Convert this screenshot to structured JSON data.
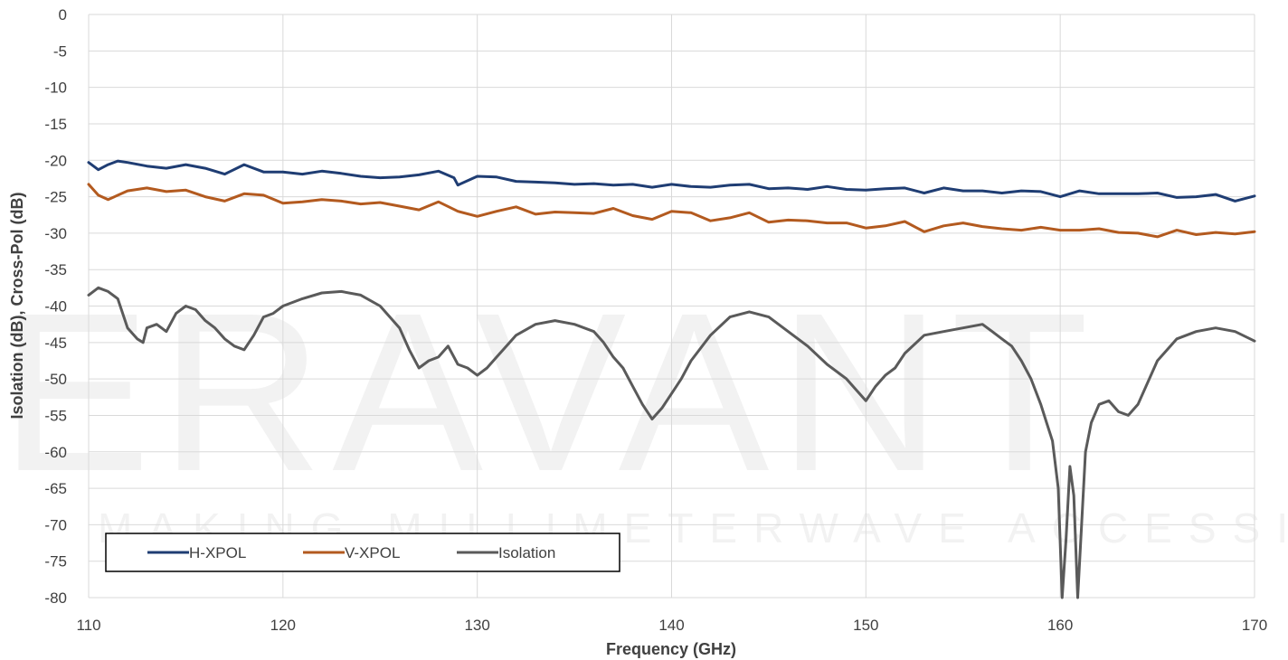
{
  "watermark": {
    "logo_text": "ERAVANT",
    "tagline": "MAKING MILLIMETERWAVE ACCESSIBLE"
  },
  "chart_data": {
    "type": "line",
    "title": "",
    "xlabel": "Frequency (GHz)",
    "ylabel": "Isolation (dB), Cross-Pol (dB)",
    "xlim": [
      110,
      170
    ],
    "ylim": [
      -80,
      0
    ],
    "x_ticks": [
      110,
      120,
      130,
      140,
      150,
      160,
      170
    ],
    "y_ticks": [
      0,
      -5,
      -10,
      -15,
      -20,
      -25,
      -30,
      -35,
      -40,
      -45,
      -50,
      -55,
      -60,
      -65,
      -70,
      -75,
      -80
    ],
    "grid": true,
    "legend_position": "bottom-left",
    "series": [
      {
        "name": "H-XPOL",
        "color": "#1f3d73",
        "x": [
          110,
          110.5,
          111,
          111.5,
          112,
          113,
          114,
          115,
          116,
          117,
          118,
          119,
          120,
          121,
          122,
          123,
          124,
          125,
          126,
          127,
          128,
          128.8,
          129,
          130,
          131,
          132,
          133,
          134,
          135,
          136,
          137,
          138,
          139,
          140,
          141,
          142,
          143,
          144,
          145,
          146,
          147,
          148,
          149,
          150,
          151,
          152,
          153,
          154,
          155,
          156,
          157,
          158,
          159,
          160,
          161,
          162,
          163,
          164,
          165,
          166,
          167,
          168,
          169,
          170
        ],
        "values": [
          -20.3,
          -21.3,
          -20.6,
          -20.1,
          -20.3,
          -20.8,
          -21.1,
          -20.6,
          -21.1,
          -21.9,
          -20.6,
          -21.6,
          -21.6,
          -21.9,
          -21.5,
          -21.8,
          -22.2,
          -22.4,
          -22.3,
          -22.0,
          -21.5,
          -22.4,
          -23.4,
          -22.2,
          -22.3,
          -22.9,
          -23.0,
          -23.1,
          -23.3,
          -23.2,
          -23.4,
          -23.3,
          -23.7,
          -23.3,
          -23.6,
          -23.7,
          -23.4,
          -23.3,
          -23.9,
          -23.8,
          -24.0,
          -23.6,
          -24.0,
          -24.1,
          -23.9,
          -23.8,
          -24.5,
          -23.8,
          -24.2,
          -24.2,
          -24.5,
          -24.2,
          -24.3,
          -25.0,
          -24.2,
          -24.6,
          -24.6,
          -24.6,
          -24.5,
          -25.1,
          -25.0,
          -24.7,
          -25.6,
          -24.9
        ]
      },
      {
        "name": "V-XPOL",
        "color": "#b35a1f",
        "x": [
          110,
          110.5,
          111,
          112,
          113,
          114,
          115,
          116,
          117,
          118,
          119,
          120,
          121,
          122,
          123,
          124,
          125,
          126,
          127,
          128,
          129,
          130,
          131,
          132,
          133,
          134,
          135,
          136,
          137,
          138,
          139,
          140,
          141,
          142,
          143,
          144,
          145,
          146,
          147,
          148,
          149,
          150,
          151,
          152,
          153,
          154,
          155,
          156,
          157,
          158,
          159,
          160,
          161,
          162,
          163,
          164,
          165,
          166,
          167,
          168,
          169,
          170
        ],
        "values": [
          -23.3,
          -24.8,
          -25.4,
          -24.2,
          -23.8,
          -24.3,
          -24.1,
          -25.0,
          -25.6,
          -24.6,
          -24.8,
          -25.9,
          -25.7,
          -25.4,
          -25.6,
          -26.0,
          -25.8,
          -26.3,
          -26.8,
          -25.7,
          -27.0,
          -27.7,
          -27.0,
          -26.4,
          -27.4,
          -27.1,
          -27.2,
          -27.3,
          -26.6,
          -27.6,
          -28.1,
          -27.0,
          -27.2,
          -28.3,
          -27.9,
          -27.2,
          -28.5,
          -28.2,
          -28.3,
          -28.6,
          -28.6,
          -29.3,
          -29.0,
          -28.4,
          -29.8,
          -29.0,
          -28.6,
          -29.1,
          -29.4,
          -29.6,
          -29.2,
          -29.6,
          -29.6,
          -29.4,
          -29.9,
          -30.0,
          -30.5,
          -29.6,
          -30.2,
          -29.9,
          -30.1,
          -29.8
        ]
      },
      {
        "name": "Isolation",
        "color": "#5a5a5a",
        "x": [
          110,
          110.5,
          111,
          111.5,
          112,
          112.5,
          112.8,
          113,
          113.5,
          114,
          114.5,
          115,
          115.5,
          116,
          116.5,
          117,
          117.5,
          118,
          118.5,
          119,
          119.5,
          120,
          121,
          122,
          123,
          124,
          125,
          126,
          126.5,
          127,
          127.5,
          128,
          128.5,
          129,
          129.5,
          130,
          130.5,
          131,
          132,
          133,
          134,
          135,
          136,
          136.5,
          137,
          137.5,
          138,
          138.5,
          139,
          139.5,
          140,
          140.5,
          141,
          142,
          143,
          144,
          145,
          146,
          147,
          148,
          149,
          149.5,
          150,
          150.5,
          151,
          151.5,
          152,
          153,
          154,
          155,
          156,
          156.5,
          157,
          157.5,
          158,
          158.5,
          159,
          159.3,
          159.6,
          159.9,
          160.1,
          160.3,
          160.5,
          160.7,
          160.9,
          161.1,
          161.3,
          161.6,
          162,
          162.5,
          163,
          163.5,
          164,
          165,
          166,
          167,
          168,
          169,
          170
        ],
        "values": [
          -38.5,
          -37.5,
          -38.0,
          -39.0,
          -43.0,
          -44.5,
          -45.0,
          -43.0,
          -42.5,
          -43.5,
          -41.0,
          -40.0,
          -40.5,
          -42.0,
          -43.0,
          -44.5,
          -45.5,
          -46.0,
          -44.0,
          -41.5,
          -41.0,
          -40.0,
          -39.0,
          -38.2,
          -38.0,
          -38.5,
          -40.0,
          -43.0,
          -46.0,
          -48.5,
          -47.5,
          -47.0,
          -45.5,
          -48.0,
          -48.5,
          -49.5,
          -48.5,
          -47.0,
          -44.0,
          -42.5,
          -42.0,
          -42.5,
          -43.5,
          -45.0,
          -47.0,
          -48.5,
          -51.0,
          -53.5,
          -55.5,
          -54.0,
          -52.0,
          -50.0,
          -47.5,
          -44.0,
          -41.5,
          -40.8,
          -41.5,
          -43.5,
          -45.5,
          -48.0,
          -50.0,
          -51.5,
          -53.0,
          -51.0,
          -49.5,
          -48.5,
          -46.5,
          -44.0,
          -43.5,
          -43.0,
          -42.5,
          -43.5,
          -44.5,
          -45.5,
          -47.5,
          -50.0,
          -53.5,
          -56.0,
          -58.5,
          -65.0,
          -80.0,
          -72.0,
          -62.0,
          -66.0,
          -80.0,
          -70.0,
          -60.0,
          -56.0,
          -53.5,
          -53.0,
          -54.5,
          -55.0,
          -53.5,
          -47.5,
          -44.5,
          -43.5,
          -43.0,
          -43.5,
          -44.8
        ]
      }
    ]
  }
}
